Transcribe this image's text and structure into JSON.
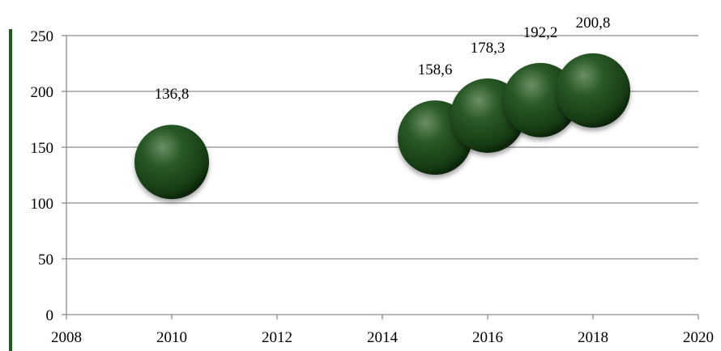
{
  "chart_data": {
    "type": "bubble",
    "title": "",
    "xlabel": "",
    "ylabel": "",
    "xlim": [
      2008,
      2020
    ],
    "ylim": [
      0,
      250
    ],
    "x_ticks": [
      "2008",
      "2010",
      "2012",
      "2014",
      "2016",
      "2018",
      "2020"
    ],
    "y_ticks": [
      "0",
      "50",
      "100",
      "150",
      "200",
      "250"
    ],
    "grid": true,
    "legend": "none",
    "colors": {
      "bubble": "#1e4a1c",
      "bubble_highlight": "#6a8f66",
      "bubble_dark": "#0a1f09",
      "left_bar": "#1c5f16",
      "grid": "#8c8c8c"
    },
    "points": [
      {
        "x": 2010,
        "y": 136.8,
        "label": "136,8"
      },
      {
        "x": 2015,
        "y": 158.6,
        "label": "158,6"
      },
      {
        "x": 2016,
        "y": 178.3,
        "label": "178,3"
      },
      {
        "x": 2017,
        "y": 192.2,
        "label": "192,2"
      },
      {
        "x": 2018,
        "y": 200.8,
        "label": "200,8"
      }
    ]
  }
}
